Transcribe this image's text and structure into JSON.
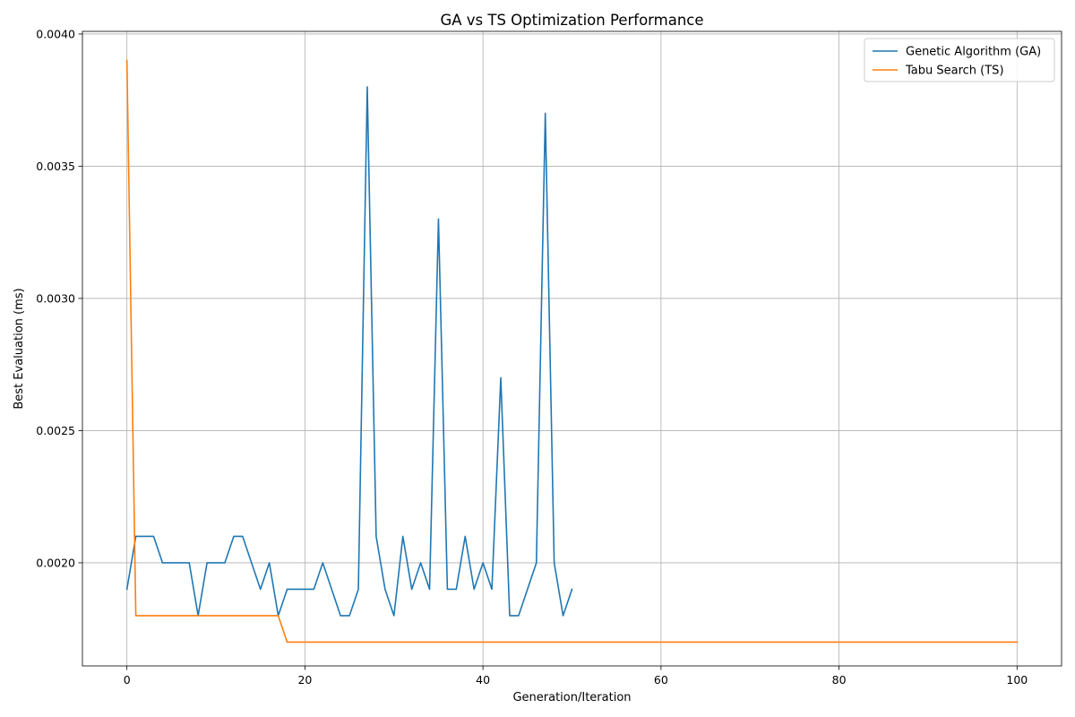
{
  "chart_data": {
    "type": "line",
    "title": "GA vs TS Optimization Performance",
    "xlabel": "Generation/Iteration",
    "ylabel": "Best Evaluation (ms)",
    "xlim": [
      -5,
      105
    ],
    "ylim": [
      0.00161,
      0.00401
    ],
    "xticks": [
      0,
      20,
      40,
      60,
      80,
      100
    ],
    "yticks": [
      0.002,
      0.0025,
      0.003,
      0.0035,
      0.004
    ],
    "xtick_labels": [
      "0",
      "20",
      "40",
      "60",
      "80",
      "100"
    ],
    "ytick_labels": [
      "0.0020",
      "0.0025",
      "0.0030",
      "0.0035",
      "0.0040"
    ],
    "grid": true,
    "legend_position": "top-right",
    "series": [
      {
        "name": "Genetic Algorithm (GA)",
        "color": "#1f77b4",
        "x": [
          0,
          1,
          2,
          3,
          4,
          5,
          6,
          7,
          8,
          9,
          10,
          11,
          12,
          13,
          14,
          15,
          16,
          17,
          18,
          19,
          20,
          21,
          22,
          23,
          24,
          25,
          26,
          27,
          28,
          29,
          30,
          31,
          32,
          33,
          34,
          35,
          36,
          37,
          38,
          39,
          40,
          41,
          42,
          43,
          44,
          45,
          46,
          47,
          48,
          49,
          50
        ],
        "y": [
          0.0019,
          0.0021,
          0.0021,
          0.0021,
          0.002,
          0.002,
          0.002,
          0.002,
          0.0018,
          0.002,
          0.002,
          0.002,
          0.0021,
          0.0021,
          0.002,
          0.0019,
          0.002,
          0.0018,
          0.0019,
          0.0019,
          0.0019,
          0.0019,
          0.002,
          0.0019,
          0.0018,
          0.0018,
          0.0019,
          0.0038,
          0.0021,
          0.0019,
          0.0018,
          0.0021,
          0.0019,
          0.002,
          0.0019,
          0.0033,
          0.0019,
          0.0019,
          0.0021,
          0.0019,
          0.002,
          0.0019,
          0.0027,
          0.0018,
          0.0018,
          0.0019,
          0.002,
          0.0037,
          0.002,
          0.0018,
          0.0019
        ]
      },
      {
        "name": "Tabu Search (TS)",
        "color": "#ff7f0e",
        "x": [
          0,
          1,
          17,
          18,
          100
        ],
        "y": [
          0.0039,
          0.0018,
          0.0018,
          0.0017,
          0.0017
        ]
      }
    ]
  }
}
